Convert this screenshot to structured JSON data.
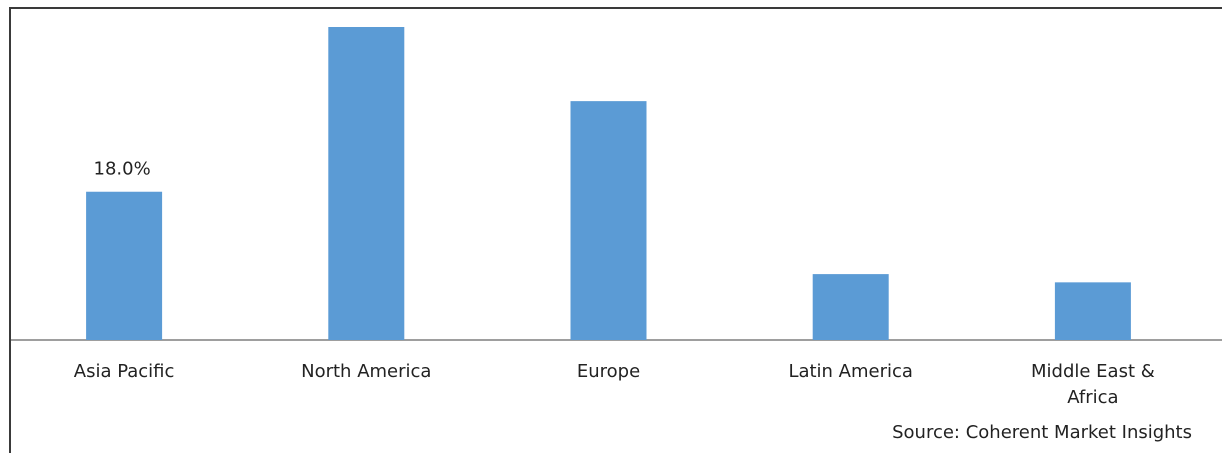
{
  "chart_data": {
    "type": "bar",
    "categories": [
      "Asia Pacific",
      "North America",
      "Europe",
      "Latin America",
      "Middle East & Africa"
    ],
    "values": [
      18.0,
      38.0,
      29.0,
      8.0,
      7.0
    ],
    "data_labels": [
      "18.0%",
      "",
      "",
      "",
      ""
    ],
    "ylim": [
      0,
      38.0
    ],
    "grid": false,
    "colors": {
      "bar": "#5b9bd5",
      "axis": "#7f7f7f",
      "text": "#222222"
    },
    "source": "Source: Coherent Market Insights"
  }
}
